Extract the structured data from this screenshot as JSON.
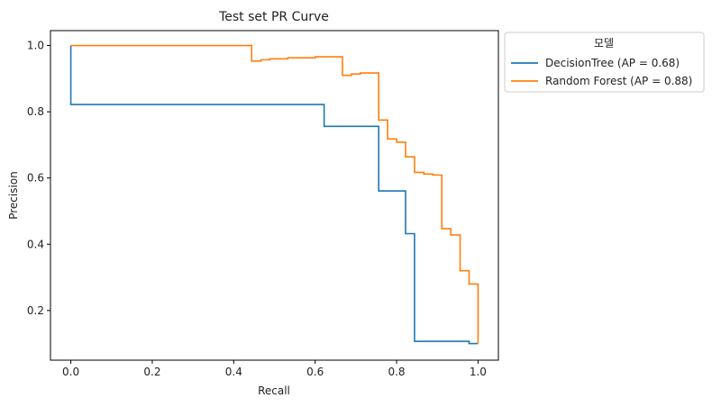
{
  "chart_data": {
    "type": "line",
    "step": true,
    "title": "Test set PR Curve",
    "xlabel": "Recall",
    "ylabel": "Precision",
    "xlim": [
      -0.05,
      1.05
    ],
    "ylim": [
      0.05,
      1.045
    ],
    "xticks": [
      0.0,
      0.2,
      0.4,
      0.6,
      0.8,
      1.0
    ],
    "xtick_labels": [
      "0.0",
      "0.2",
      "0.4",
      "0.6",
      "0.8",
      "1.0"
    ],
    "yticks": [
      0.2,
      0.4,
      0.6,
      0.8,
      1.0
    ],
    "ytick_labels": [
      "0.2",
      "0.4",
      "0.6",
      "0.8",
      "1.0"
    ],
    "grid": false,
    "legend": {
      "title": "모델",
      "placement": "outside-top-right"
    },
    "series": [
      {
        "name": "DecisionTree (AP = 0.68)",
        "color": "#1f77b4",
        "points": [
          [
            0.0,
            1.0
          ],
          [
            0.0,
            0.822
          ],
          [
            0.622,
            0.822
          ],
          [
            0.622,
            0.756
          ],
          [
            0.756,
            0.756
          ],
          [
            0.756,
            0.561
          ],
          [
            0.822,
            0.561
          ],
          [
            0.822,
            0.432
          ],
          [
            0.844,
            0.432
          ],
          [
            0.844,
            0.107
          ],
          [
            0.978,
            0.107
          ],
          [
            0.978,
            0.1
          ],
          [
            1.0,
            0.1
          ]
        ]
      },
      {
        "name": "Random Forest (AP = 0.88)",
        "color": "#ff7f0e",
        "points": [
          [
            0.0,
            1.0
          ],
          [
            0.444,
            1.0
          ],
          [
            0.444,
            0.953
          ],
          [
            0.467,
            0.953
          ],
          [
            0.467,
            0.957
          ],
          [
            0.489,
            0.957
          ],
          [
            0.489,
            0.96
          ],
          [
            0.533,
            0.96
          ],
          [
            0.533,
            0.963
          ],
          [
            0.6,
            0.963
          ],
          [
            0.6,
            0.966
          ],
          [
            0.667,
            0.966
          ],
          [
            0.667,
            0.91
          ],
          [
            0.689,
            0.91
          ],
          [
            0.689,
            0.914
          ],
          [
            0.711,
            0.914
          ],
          [
            0.711,
            0.917
          ],
          [
            0.756,
            0.917
          ],
          [
            0.756,
            0.775
          ],
          [
            0.778,
            0.775
          ],
          [
            0.778,
            0.718
          ],
          [
            0.8,
            0.718
          ],
          [
            0.8,
            0.708
          ],
          [
            0.822,
            0.708
          ],
          [
            0.822,
            0.664
          ],
          [
            0.844,
            0.664
          ],
          [
            0.844,
            0.617
          ],
          [
            0.867,
            0.617
          ],
          [
            0.867,
            0.612
          ],
          [
            0.889,
            0.612
          ],
          [
            0.889,
            0.609
          ],
          [
            0.911,
            0.609
          ],
          [
            0.911,
            0.447
          ],
          [
            0.933,
            0.447
          ],
          [
            0.933,
            0.428
          ],
          [
            0.956,
            0.428
          ],
          [
            0.956,
            0.32
          ],
          [
            0.978,
            0.32
          ],
          [
            0.978,
            0.28
          ],
          [
            1.0,
            0.28
          ],
          [
            1.0,
            0.1
          ]
        ]
      }
    ]
  }
}
